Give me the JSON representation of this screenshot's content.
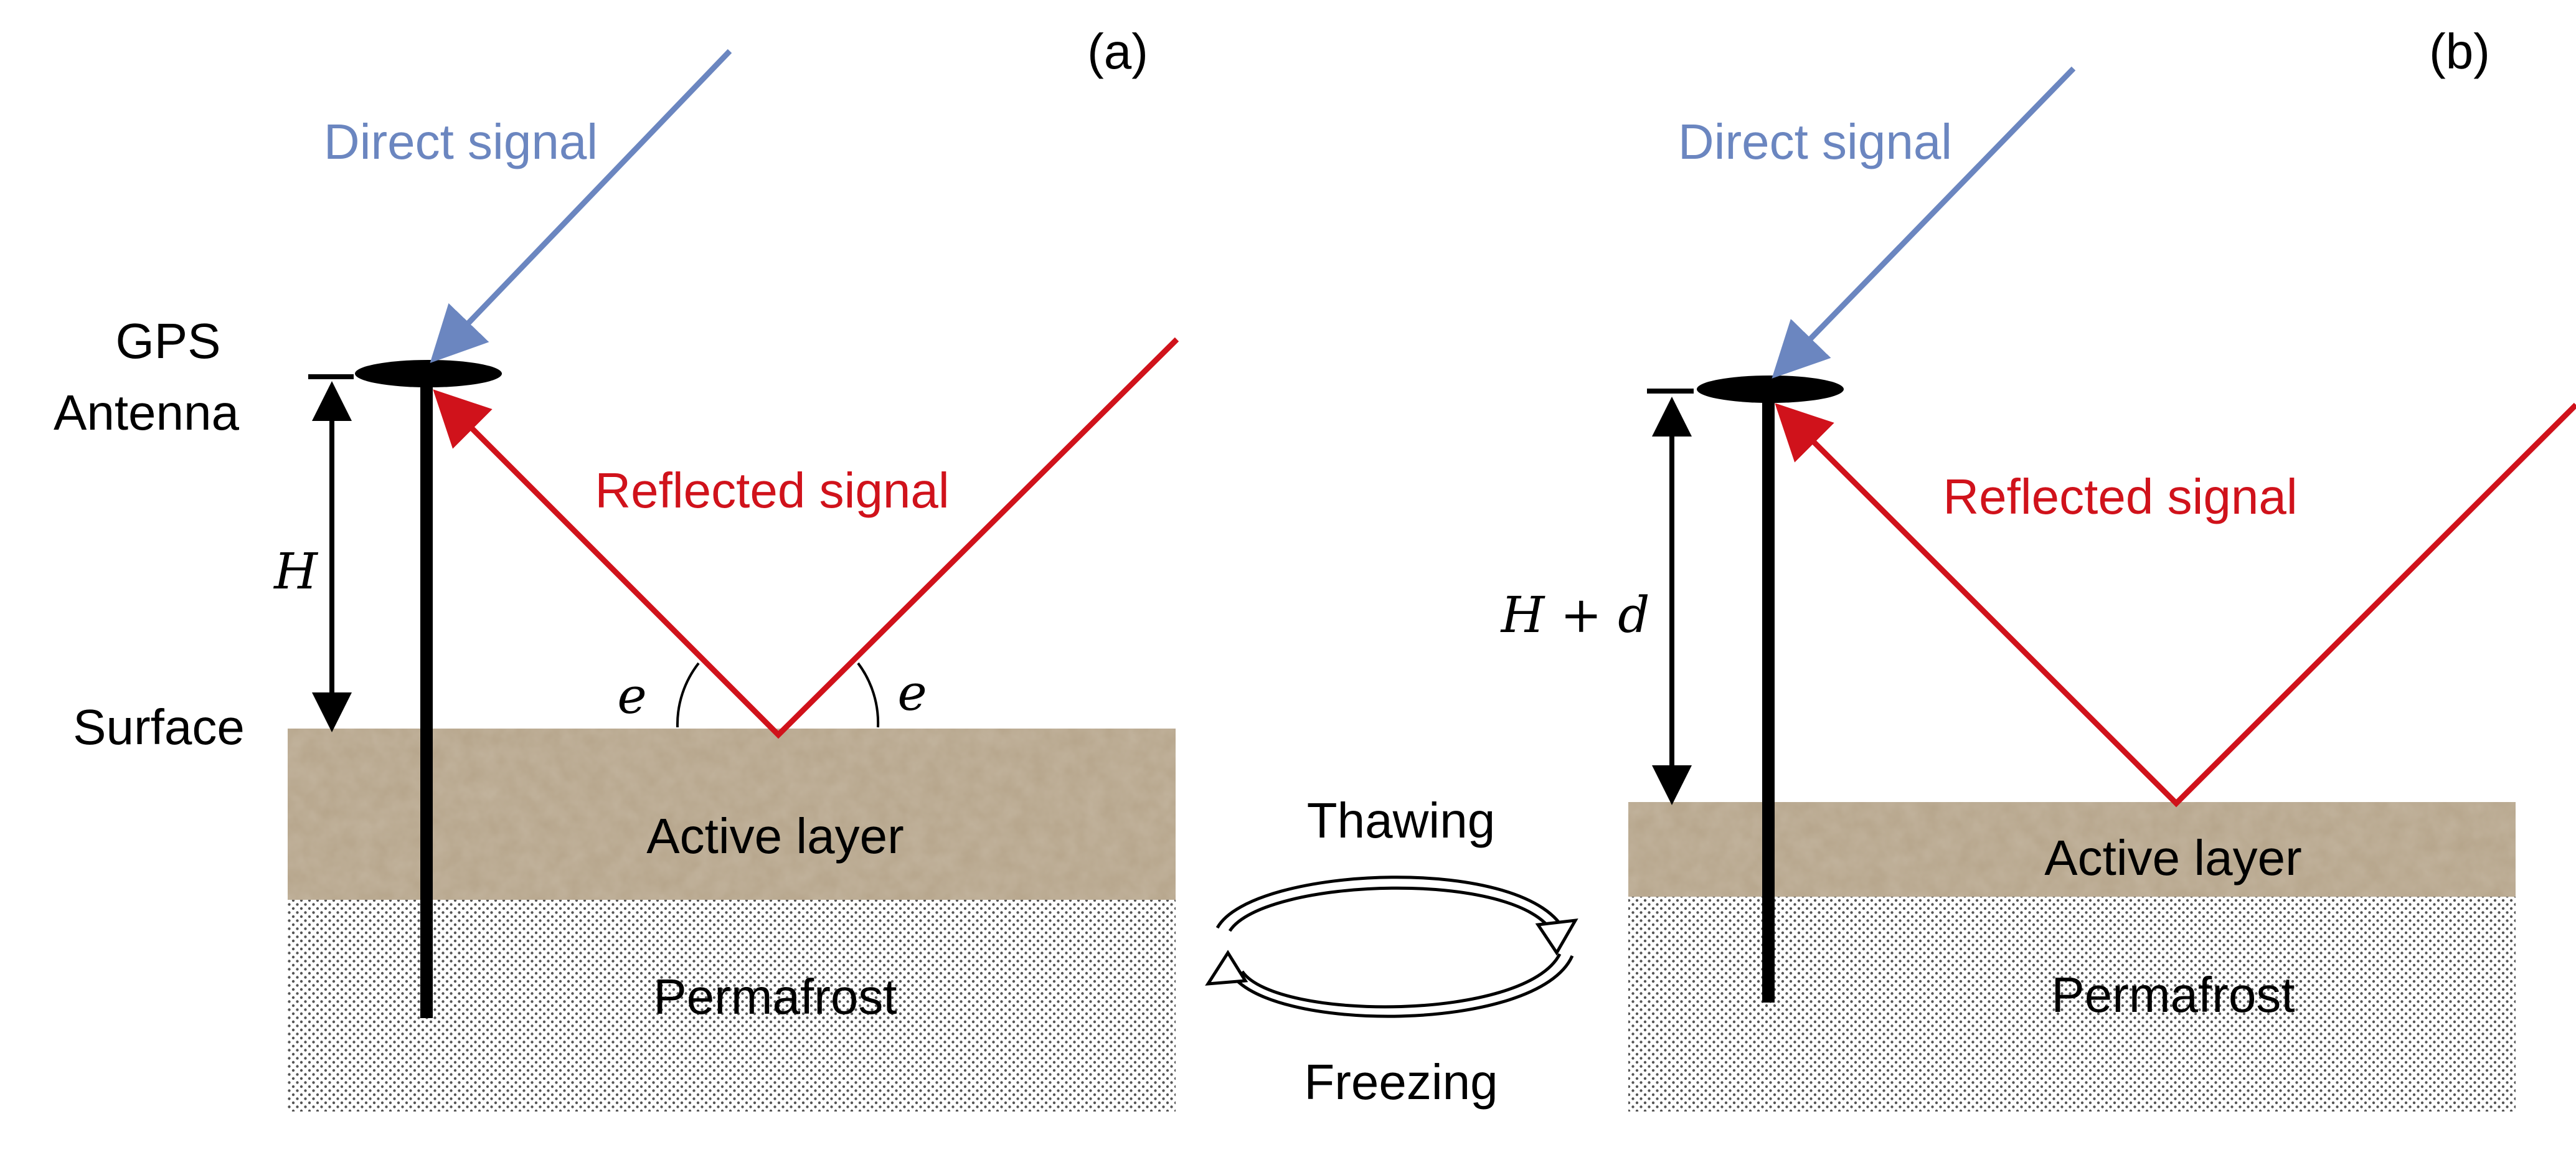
{
  "panel_a": {
    "label": "(a)",
    "direct_signal": "Direct signal",
    "reflected_signal": "Reflected signal",
    "antenna_label_line1": "GPS",
    "antenna_label_line2": "Antenna",
    "surface_label": "Surface",
    "height_label": "H",
    "elevation_left": "e",
    "elevation_right": "e",
    "active_layer": "Active layer",
    "permafrost": "Permafrost"
  },
  "panel_b": {
    "label": "(b)",
    "direct_signal": "Direct signal",
    "reflected_signal": "Reflected signal",
    "height_label": "H + d",
    "active_layer": "Active layer",
    "permafrost": "Permafrost"
  },
  "cycle": {
    "thawing": "Thawing",
    "freezing": "Freezing"
  },
  "colors": {
    "direct_signal": "#6b86c0",
    "reflected_signal": "#d0121b",
    "soil": "#b5a48a",
    "permafrost_dots": "#555555",
    "ink": "#000000"
  }
}
